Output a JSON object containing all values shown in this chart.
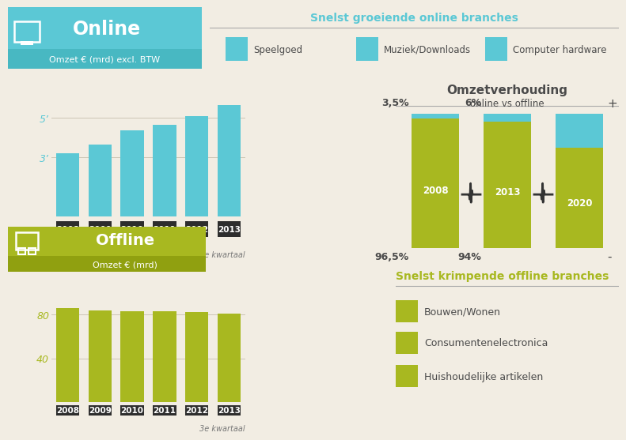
{
  "bg_color": "#f2ede3",
  "online_bar_color": "#5bc8d5",
  "offline_bar_color": "#a8b820",
  "cyan_header_bg": "#5bc8d5",
  "cyan_header_sub": "#48b8c2",
  "green_header_bg": "#a8b820",
  "green_header_sub": "#90a010",
  "year_bg": "#2d2d2d",
  "years": [
    "2008",
    "2009",
    "2010",
    "2011",
    "2012",
    "2013"
  ],
  "online_values": [
    3.2,
    3.65,
    4.35,
    4.65,
    5.1,
    5.65
  ],
  "offline_values": [
    85.5,
    83.5,
    83.0,
    82.5,
    82.0,
    80.5
  ],
  "online_yticks": [
    3,
    5
  ],
  "offline_yticks": [
    40,
    80
  ],
  "title_online": "Online",
  "subtitle_online": "Omzet € (mrd) excl. BTW",
  "title_offline": "Offline",
  "subtitle_offline": "Omzet € (mrd)",
  "kwartaal_label": "3e kwartaal",
  "top_title": "Snelst groeiende online branches",
  "top_items": [
    "Speelgoed",
    "Muziek/Downloads",
    "Computer hardware"
  ],
  "omzet_title": "Omzetverhouding",
  "omzet_subtitle": "online vs offline",
  "omzet_years": [
    "2008",
    "2013",
    "2020"
  ],
  "omzet_online_pct": [
    "3,5%",
    "6%"
  ],
  "omzet_offline_pct": [
    "96,5%",
    "94%"
  ],
  "shrink_title": "Snelst krimpende offline branches",
  "shrink_items": [
    "Bouwen/Wonen",
    "Consumentenelectronica",
    "Huishoudelijke artikelen"
  ],
  "text_dark": "#4a4a4a",
  "text_cyan": "#5bc8d5",
  "text_green": "#a8b820",
  "grid_color": "#ccc5b5",
  "divider_color": "#aaaaaa"
}
